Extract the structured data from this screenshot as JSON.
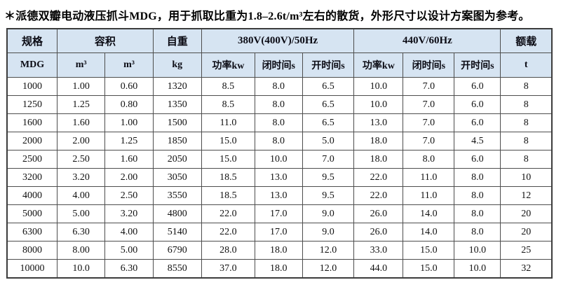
{
  "caption": "＊派德双瓣电动液压抓斗MDG，用于抓取比重为1.8–2.6t/m³左右的散货，外形尺寸以设计方案图为参考。",
  "colors": {
    "header_bg": "#d6e4f2",
    "border": "#4d4d4d",
    "outer_border": "#3c3c3c",
    "text": "#111111"
  },
  "table": {
    "header_groups": [
      {
        "label": "规格",
        "colspan": 1
      },
      {
        "label": "容积",
        "colspan": 2
      },
      {
        "label": "自重",
        "colspan": 1
      },
      {
        "label": "380V(400V)/50Hz",
        "colspan": 3
      },
      {
        "label": "440V/60Hz",
        "colspan": 3
      },
      {
        "label": "额载",
        "colspan": 1
      }
    ],
    "sub_headers": [
      "MDG",
      "m³",
      "m³",
      "kg",
      "功率kw",
      "闭时间s",
      "开时间s",
      "功率kw",
      "闭时间s",
      "开时间s",
      "t"
    ],
    "rows": [
      [
        "1000",
        "1.00",
        "0.60",
        "1320",
        "8.5",
        "8.0",
        "6.5",
        "10.0",
        "7.0",
        "6.0",
        "8"
      ],
      [
        "1250",
        "1.25",
        "0.80",
        "1350",
        "8.5",
        "8.0",
        "6.5",
        "10.0",
        "7.0",
        "6.0",
        "8"
      ],
      [
        "1600",
        "1.60",
        "1.00",
        "1500",
        "11.0",
        "8.0",
        "6.5",
        "13.0",
        "7.0",
        "6.0",
        "8"
      ],
      [
        "2000",
        "2.00",
        "1.25",
        "1850",
        "15.0",
        "8.0",
        "5.0",
        "18.0",
        "7.0",
        "4.5",
        "8"
      ],
      [
        "2500",
        "2.50",
        "1.60",
        "2050",
        "15.0",
        "10.0",
        "7.0",
        "18.0",
        "8.0",
        "6.0",
        "8"
      ],
      [
        "3200",
        "3.20",
        "2.00",
        "3050",
        "18.5",
        "13.0",
        "9.5",
        "22.0",
        "11.0",
        "8.0",
        "10"
      ],
      [
        "4000",
        "4.00",
        "2.50",
        "3550",
        "18.5",
        "13.0",
        "9.5",
        "22.0",
        "11.0",
        "8.0",
        "12"
      ],
      [
        "5000",
        "5.00",
        "3.20",
        "4800",
        "22.0",
        "17.0",
        "9.0",
        "26.0",
        "14.0",
        "8.0",
        "20"
      ],
      [
        "6300",
        "6.30",
        "4.00",
        "5140",
        "22.0",
        "17.0",
        "9.0",
        "26.0",
        "14.0",
        "8.0",
        "20"
      ],
      [
        "8000",
        "8.00",
        "5.00",
        "6790",
        "28.0",
        "18.0",
        "12.0",
        "33.0",
        "15.0",
        "10.0",
        "25"
      ],
      [
        "10000",
        "10.0",
        "6.30",
        "8550",
        "37.0",
        "18.0",
        "12.0",
        "44.0",
        "15.0",
        "10.0",
        "32"
      ]
    ]
  }
}
